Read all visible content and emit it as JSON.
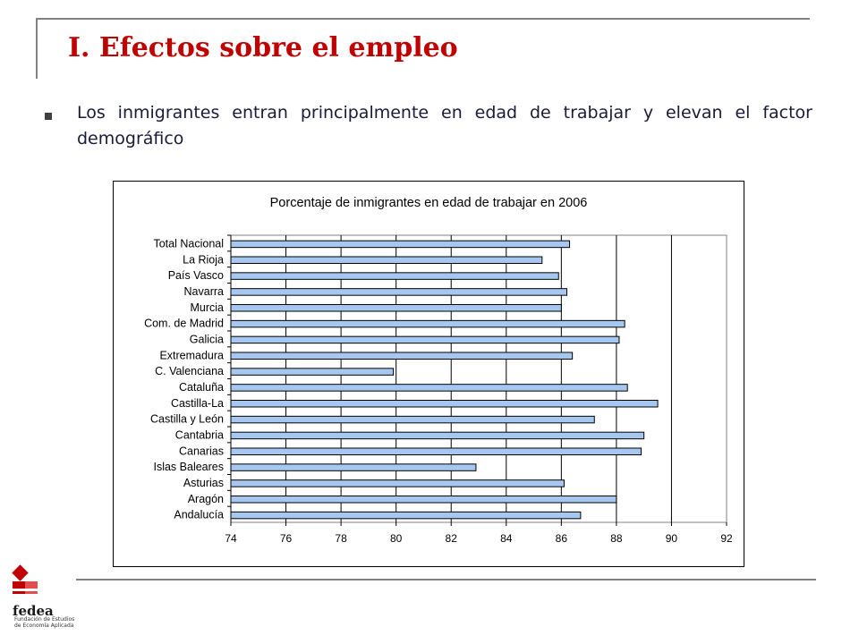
{
  "slide": {
    "title": "I. Efectos sobre el empleo",
    "bullet": "Los inmigrantes entran principalmente en edad de trabajar  y elevan el factor demográfico"
  },
  "logo": {
    "name": "fedea",
    "subtitle": "Fundación de Estudios de Economía Aplicada"
  },
  "colors": {
    "title": "#c00000",
    "bar_fill": "#a6c8f0",
    "bar_stroke": "#000000"
  },
  "chart_data": {
    "type": "bar",
    "orientation": "horizontal",
    "title": "Porcentaje de inmigrantes en edad de trabajar en 2006",
    "categories": [
      "Total Nacional",
      "La Rioja",
      "País Vasco",
      "Navarra",
      "Murcia",
      "Com. de Madrid",
      "Galicia",
      "Extremadura",
      "C. Valenciana",
      "Cataluña",
      "Castilla-La",
      "Castilla y León",
      "Cantabria",
      "Canarias",
      "Islas Baleares",
      "Asturias",
      "Aragón",
      "Andalucía"
    ],
    "values": [
      86.3,
      85.3,
      85.9,
      86.2,
      86.0,
      88.3,
      88.1,
      86.4,
      79.9,
      88.4,
      89.5,
      87.2,
      89.0,
      88.9,
      82.9,
      86.1,
      88.0,
      86.7
    ],
    "xlim": [
      74,
      92
    ],
    "xticks": [
      "74",
      "76",
      "78",
      "80",
      "82",
      "84",
      "86",
      "88",
      "90",
      "92"
    ],
    "grid": "vertical major gridlines",
    "legend": "none"
  }
}
